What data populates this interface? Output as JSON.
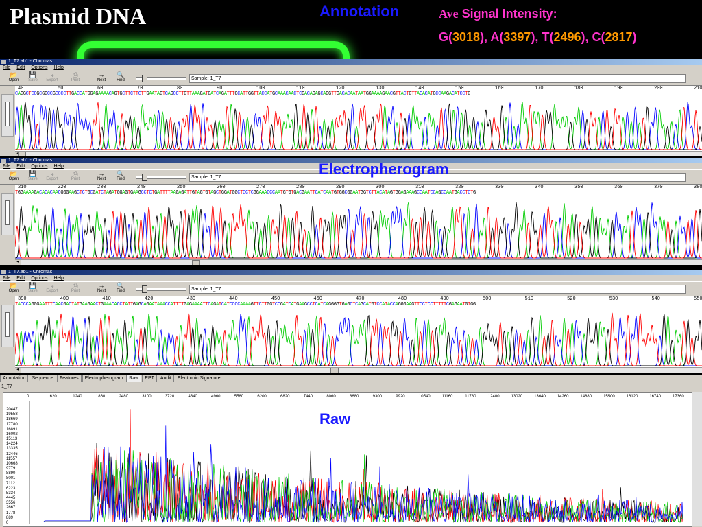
{
  "slide": {
    "title": "Plasmid DNA",
    "annotation_label": "Annotation",
    "signal_title_ave": "Ave",
    "signal_title_rest": " Signal Intensity:",
    "signal": [
      {
        "base": "G",
        "value": "3018"
      },
      {
        "base": "A",
        "value": "3397"
      },
      {
        "base": "T",
        "value": "2496"
      },
      {
        "base": "C",
        "value": "2817"
      }
    ],
    "electropherogram_label": "Electropherogram",
    "raw_label": "Raw"
  },
  "colors": {
    "A": "#00cc00",
    "C": "#0000ff",
    "G": "#000000",
    "T": "#ff0000"
  },
  "windows": [
    {
      "title": "1_T7.ab1 - Chromas",
      "menu": [
        "File",
        "Edit",
        "Options",
        "Help"
      ],
      "toolbar": [
        "Open",
        "Save",
        "Export",
        "Print",
        "Next",
        "Find"
      ],
      "sample": "Sample: 1_T7",
      "ruler": [
        "40",
        "50",
        "60",
        "70",
        "80",
        "90",
        "100",
        "110",
        "120",
        "130",
        "140",
        "150",
        "160",
        "170",
        "180",
        "190",
        "200",
        "210"
      ],
      "sequence": "CAGGCTCCGCGGCCGCCCCTTGACCATGGAGAAAACAGTGCTTCTTCTTGAATAGTCAGCCTTGTTAAAGATGATCAGATTTGCATTGGTTACCATGCAAACAACTCGACAGAGCAGGTTGACACAATAATGGAAAAGAACGTTACTGTTACACATGCCAAGACATCCTG"
    },
    {
      "title": "1_T7.ab1 - Chromas",
      "menu": [
        "File",
        "Edit",
        "Options",
        "Help"
      ],
      "toolbar": [
        "Open",
        "Save",
        "Export",
        "Print",
        "Next",
        "Find"
      ],
      "sample": "Sample: 1_T7",
      "ruler": [
        "210",
        "220",
        "230",
        "240",
        "250",
        "260",
        "270",
        "280",
        "290",
        "300",
        "310",
        "320",
        "330",
        "340",
        "350",
        "360",
        "370",
        "380"
      ],
      "sequence": "TGGAAAAGACACACAACGGGAAGCTCTGCGATCTAGATGGAGTGAAGCCTCTGATTTTAAGAGATTGTAGTGTAGCTGGATGGCTCCTCGGAAACCCAATGTGTGACGAATTCATCAATGTGGCGGAATGGTCTTACATAGTGGAGAAAGCCAATCCAGCCAATGACCTCTG"
    },
    {
      "title": "1_T7.ab1 - Chromas",
      "menu": [
        "File",
        "Edit",
        "Options",
        "Help"
      ],
      "toolbar": [
        "Open",
        "Save",
        "Export",
        "Print",
        "Next",
        "Find"
      ],
      "sample": "Sample: 1_T7",
      "ruler": [
        "390",
        "400",
        "410",
        "420",
        "430",
        "440",
        "450",
        "460",
        "470",
        "480",
        "490",
        "500",
        "510",
        "520",
        "530",
        "540",
        "550"
      ],
      "sequence": "TACCCAGGGAATTTCAACGACTATGAAGAACTGAAACACCTATTGAGCAGAATAAACCATTTTGAGAAAATTCAGATCATCCCCAAAAGTTCTTGGTCCGATCATGAAGCCTCATCAGGGGTGAGCTCAGCATGTCCATACCAGGGAAGTTCCTCCTTTTTCGAGAATGTGG"
    }
  ],
  "raw": {
    "tabs": [
      "Annotation",
      "Sequence",
      "Features",
      "Electropherogram",
      "Raw",
      "EPT",
      "Audit",
      "Electronic Signature"
    ],
    "active_tab": "Raw",
    "sample_name": "1_T7",
    "x_ticks": [
      "0",
      "620",
      "1240",
      "1860",
      "2480",
      "3100",
      "3720",
      "4340",
      "4960",
      "5580",
      "6200",
      "6820",
      "7440",
      "8060",
      "8680",
      "9300",
      "9920",
      "10540",
      "11160",
      "11780",
      "12400",
      "13020",
      "13640",
      "14260",
      "14880",
      "15500",
      "16120",
      "16740",
      "17360"
    ],
    "y_ticks": [
      "20447",
      "19558",
      "18669",
      "17780",
      "16891",
      "16002",
      "15113",
      "14224",
      "13335",
      "12446",
      "11557",
      "10668",
      "9779",
      "8890",
      "8001",
      "7112",
      "6223",
      "5334",
      "4445",
      "3556",
      "2667",
      "1778",
      "889",
      "0"
    ]
  }
}
